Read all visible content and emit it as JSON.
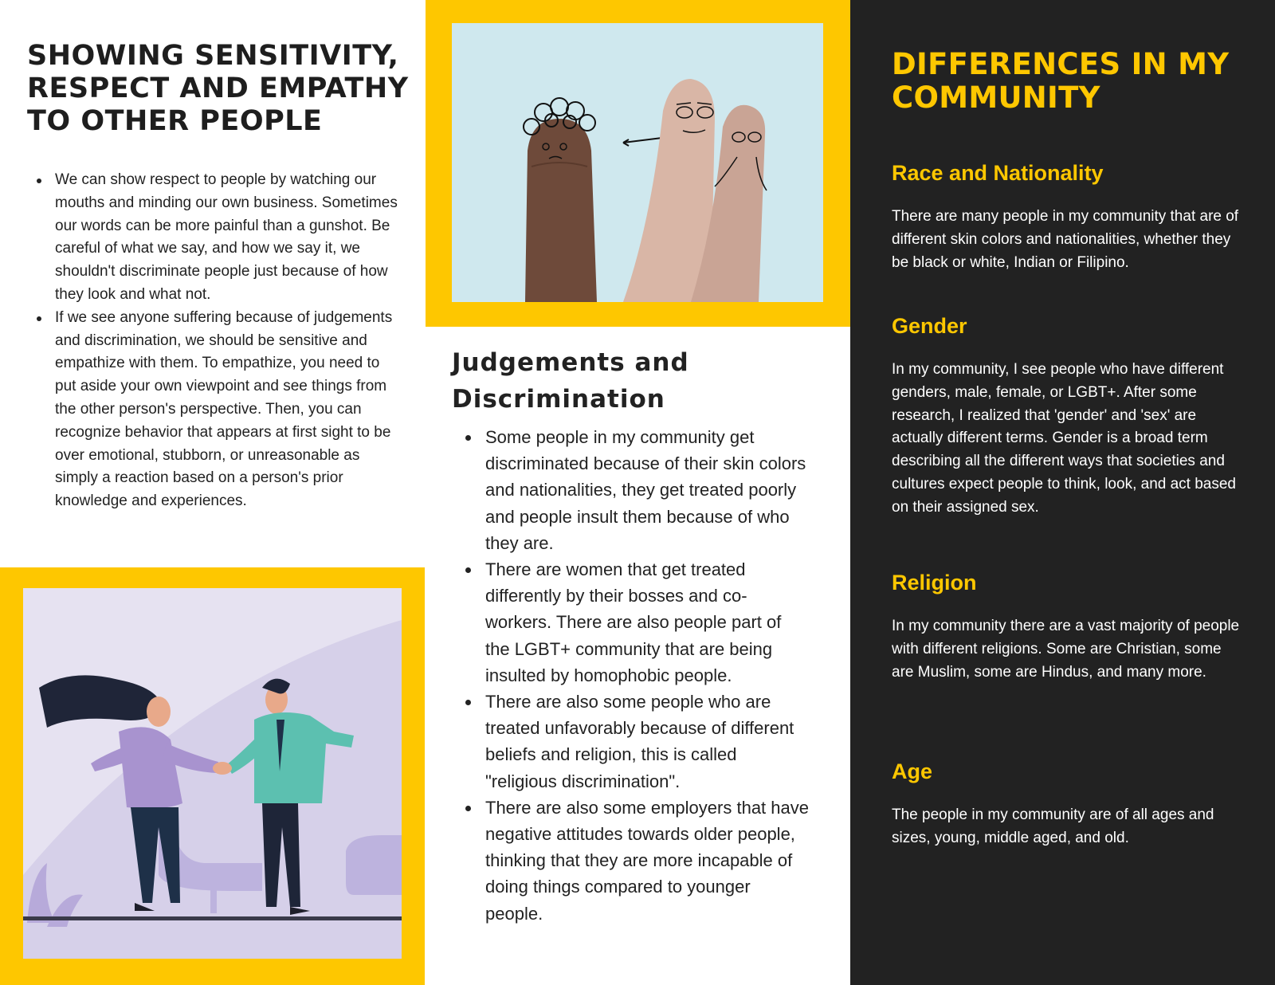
{
  "left": {
    "title": "SHOWING SENSITIVITY, RESPECT AND EMPATHY TO OTHER PEOPLE",
    "bullets": [
      "We can show respect to people by watching our mouths and minding our own business. Sometimes our words can be more painful than a gunshot. Be careful of what we say, and how we say it, we shouldn't discriminate people just because of how they look and what not.",
      "If we see anyone suffering because of judgements and discrimination, we should be sensitive and empathize with them.  To empathize, you need to put aside your own viewpoint and see things from the other person's perspective. Then, you can recognize behavior that appears at first sight to be over emotional, stubborn, or unreasonable as simply a reaction based on a person's prior knowledge and experiences."
    ]
  },
  "middle": {
    "title": "Judgements and Discrimination",
    "bullets": [
      "Some people in my community get discriminated because of their skin colors and nationalities, they get treated poorly and people insult them because of who they are.",
      "There are women that get treated differently by their bosses and co-workers. There are also people part of the LGBT+ community that are being insulted by homophobic people.",
      "There are also some people who are treated unfavorably because of different beliefs and religion, this is called \"religious discrimination\".",
      "There are also some employers that have negative attitudes towards older people, thinking that they are more incapable of doing things compared to younger people."
    ]
  },
  "right": {
    "title": "DIFFERENCES IN MY COMMUNITY",
    "sections": [
      {
        "heading": "Race and Nationality",
        "body": "There are many people in my community that are of different skin colors and nationalities, whether they be black or white, Indian or Filipino."
      },
      {
        "heading": "Gender",
        "body": "In my community, I see people who have different genders, male, female, or LGBT+. After some research, I realized that 'gender' and 'sex' are actually different terms. Gender is a broad term describing all the different ways that societies and cultures expect people to think, look, and act based on their assigned sex."
      },
      {
        "heading": "Religion",
        "body": "In my community there are a vast majority of people with different religions. Some are Christian, some are Muslim, some are Hindus, and many more."
      },
      {
        "heading": "Age",
        "body": "The people in my community are of all ages and sizes, young, middle aged, and old."
      }
    ]
  },
  "colors": {
    "accent": "#fec700",
    "dark_panel": "#222222",
    "text": "#1f1f1f"
  }
}
